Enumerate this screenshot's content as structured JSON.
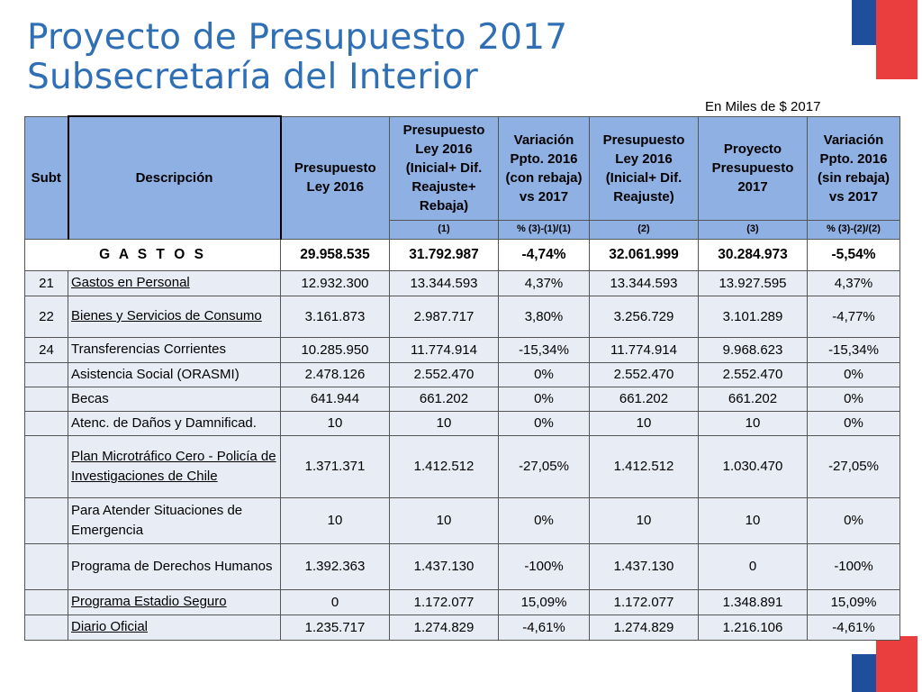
{
  "title_line1": "Proyecto de Presupuesto 2017",
  "title_line2": "Subsecretaría del Interior",
  "unit_note": "En Miles de $ 2017",
  "colors": {
    "title": "#2f6fb5",
    "header_bg": "#8eb0e3",
    "row_bg": "#e8ecf4",
    "flag_blue": "#1f4f9c",
    "flag_red": "#ea3d3d"
  },
  "headers": {
    "subt": "Subt",
    "descripcion": "Descripción",
    "c1": "Presupuesto Ley 2016",
    "c2": "Presupuesto Ley 2016 (Inicial+ Dif. Reajuste+ Rebaja)",
    "c3": "Variación Ppto. 2016 (con rebaja) vs 2017",
    "c4": "Presupuesto Ley 2016 (Inicial+ Dif. Reajuste)",
    "c5": "Proyecto Presupuesto 2017",
    "c6": "Variación Ppto. 2016 (sin rebaja) vs 2017"
  },
  "subheaders": [
    "(1)",
    "% (3)-(1)/(1)",
    "(2)",
    "(3)",
    "% (3)-(2)/(2)"
  ],
  "gastos": {
    "label": "G A S T O S",
    "values": [
      "29.958.535",
      "31.792.987",
      "-4,74%",
      "32.061.999",
      "30.284.973",
      "-5,54%"
    ]
  },
  "rows": [
    {
      "subt": "21",
      "desc": "Gastos en Personal",
      "underline": true,
      "values": [
        "12.932.300",
        "13.344.593",
        "4,37%",
        "13.344.593",
        "13.927.595",
        "4,37%"
      ]
    },
    {
      "subt": "22",
      "desc": "Bienes y Servicios de Consumo",
      "underline": true,
      "values": [
        "3.161.873",
        "2.987.717",
        "3,80%",
        "3.256.729",
        "3.101.289",
        "-4,77%"
      ]
    },
    {
      "subt": "24",
      "desc": "Transferencias Corrientes",
      "underline": false,
      "values": [
        "10.285.950",
        "11.774.914",
        "-15,34%",
        "11.774.914",
        "9.968.623",
        "-15,34%"
      ]
    },
    {
      "subt": "",
      "desc": "Asistencia Social (ORASMI)",
      "underline": false,
      "values": [
        "2.478.126",
        "2.552.470",
        "0%",
        "2.552.470",
        "2.552.470",
        "0%"
      ]
    },
    {
      "subt": "",
      "desc": "Becas",
      "underline": false,
      "values": [
        "641.944",
        "661.202",
        "0%",
        "661.202",
        "661.202",
        "0%"
      ]
    },
    {
      "subt": "",
      "desc": "Atenc. de Daños y Damnificad.",
      "underline": false,
      "values": [
        "10",
        "10",
        "0%",
        "10",
        "10",
        "0%"
      ]
    },
    {
      "subt": "",
      "desc": "Plan Microtráfico Cero - Policía de Investigaciones de Chile",
      "underline": true,
      "values": [
        "1.371.371",
        "1.412.512",
        "-27,05%",
        "1.412.512",
        "1.030.470",
        "-27,05%"
      ]
    },
    {
      "subt": "",
      "desc": "Para Atender Situaciones de Emergencia",
      "underline": false,
      "values": [
        "10",
        "10",
        "0%",
        "10",
        "10",
        "0%"
      ]
    },
    {
      "subt": "",
      "desc": "Programa de Derechos Humanos",
      "underline": false,
      "values": [
        "1.392.363",
        "1.437.130",
        "-100%",
        "1.437.130",
        "0",
        "-100%"
      ]
    },
    {
      "subt": "",
      "desc": "Programa Estadio Seguro",
      "underline": true,
      "values": [
        "0",
        "1.172.077",
        "15,09%",
        "1.172.077",
        "1.348.891",
        "15,09%"
      ]
    },
    {
      "subt": "",
      "desc": "Diario Oficial",
      "underline": true,
      "values": [
        "1.235.717",
        "1.274.829",
        "-4,61%",
        "1.274.829",
        "1.216.106",
        "-4,61%"
      ]
    }
  ]
}
